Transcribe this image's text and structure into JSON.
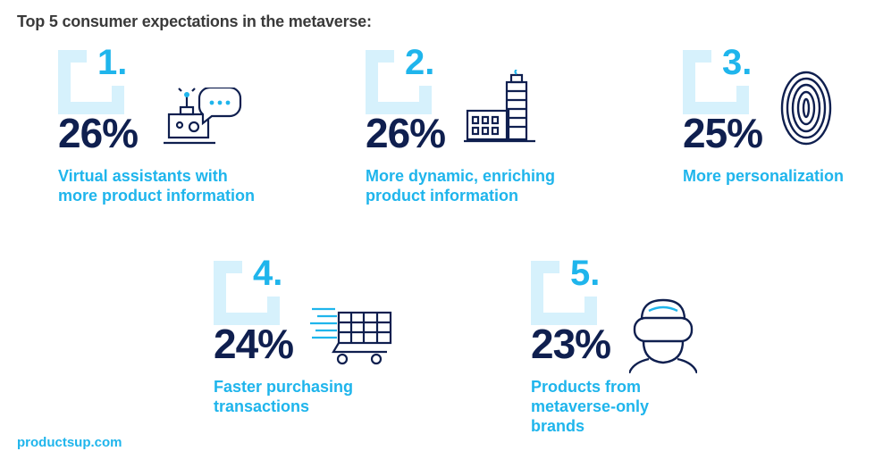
{
  "title": "Top 5 consumer expectations in the metaverse:",
  "footer": "productsup.com",
  "colors": {
    "accent": "#1fb5ec",
    "bracket": "#d6f1fc",
    "dark": "#0f1f4f"
  },
  "chart_data": {
    "type": "table",
    "title": "Top 5 consumer expectations in the metaverse:",
    "items": [
      {
        "rank": "1.",
        "percent": "26%",
        "value": 26,
        "label": "Virtual assistants with more product information",
        "icon": "robot-chat-icon"
      },
      {
        "rank": "2.",
        "percent": "26%",
        "value": 26,
        "label": "More dynamic, enriching product information",
        "icon": "factory-icon"
      },
      {
        "rank": "3.",
        "percent": "25%",
        "value": 25,
        "label": "More personalization",
        "icon": "fingerprint-icon"
      },
      {
        "rank": "4.",
        "percent": "24%",
        "value": 24,
        "label": "Faster purchasing transactions",
        "icon": "shopping-cart-icon"
      },
      {
        "rank": "5.",
        "percent": "23%",
        "value": 23,
        "label": "Products from metaverse-only brands",
        "icon": "vr-headset-icon"
      }
    ]
  }
}
